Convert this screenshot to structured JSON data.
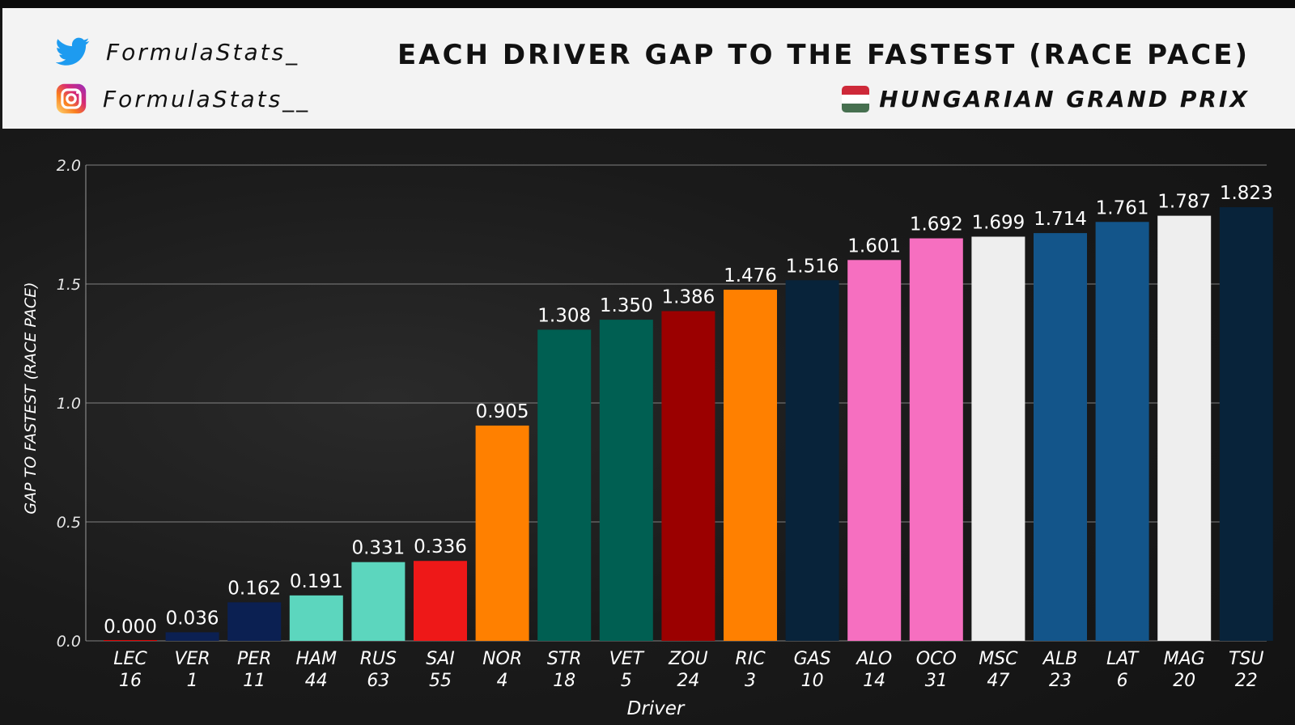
{
  "header": {
    "twitter_handle": "FormulaStats_",
    "instagram_handle": "FormulaStats__",
    "title": "EACH DRIVER GAP TO THE FASTEST (RACE PACE)",
    "subtitle": "HUNGARIAN GRAND PRIX",
    "flag_colors": [
      "#ce2939",
      "#ffffff",
      "#477050"
    ]
  },
  "chart_data": {
    "type": "bar",
    "title": "EACH DRIVER GAP TO THE FASTEST (RACE PACE)",
    "subtitle": "HUNGARIAN GRAND PRIX",
    "xlabel": "Driver",
    "ylabel": "GAP TO FASTEST (RACE PACE)",
    "ylim": [
      0,
      2.0
    ],
    "yticks": [
      "0.0",
      "0.5",
      "1.0",
      "1.5",
      "2.0"
    ],
    "grid": true,
    "categories": [
      "LEC",
      "VER",
      "PER",
      "HAM",
      "RUS",
      "SAI",
      "NOR",
      "STR",
      "VET",
      "ZOU",
      "RIC",
      "GAS",
      "ALO",
      "OCO",
      "MSC",
      "ALB",
      "LAT",
      "MAG",
      "TSU"
    ],
    "numbers": [
      "16",
      "1",
      "11",
      "44",
      "63",
      "55",
      "4",
      "18",
      "5",
      "24",
      "3",
      "10",
      "14",
      "31",
      "47",
      "23",
      "6",
      "20",
      "22"
    ],
    "values": [
      0.0,
      0.036,
      0.162,
      0.191,
      0.331,
      0.336,
      0.905,
      1.308,
      1.35,
      1.386,
      1.476,
      1.516,
      1.601,
      1.692,
      1.699,
      1.714,
      1.761,
      1.787,
      1.823
    ],
    "labels": [
      "0.000",
      "0.036",
      "0.162",
      "0.191",
      "0.331",
      "0.336",
      "0.905",
      "1.308",
      "1.350",
      "1.386",
      "1.476",
      "1.516",
      "1.601",
      "1.692",
      "1.699",
      "1.714",
      "1.761",
      "1.787",
      "1.823"
    ],
    "colors": [
      "#dc0000",
      "#0b2052",
      "#0b2052",
      "#5cd6be",
      "#5cd6be",
      "#ee1818",
      "#ff8000",
      "#005f52",
      "#005f52",
      "#9b0000",
      "#ff8000",
      "#08233a",
      "#f66fc0",
      "#f66fc0",
      "#eeeeee",
      "#13558a",
      "#13558a",
      "#eeeeee",
      "#08233a"
    ]
  }
}
